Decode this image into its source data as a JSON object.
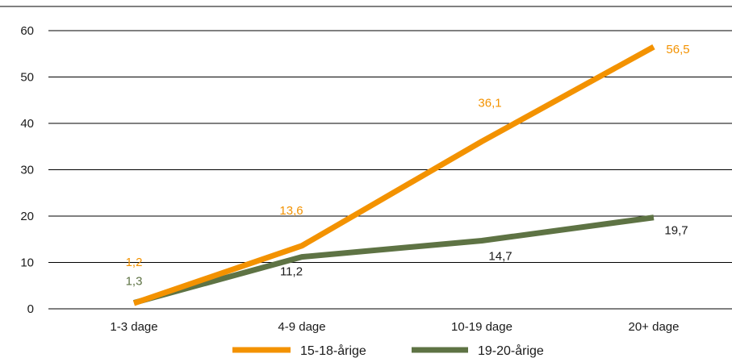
{
  "chart_data": {
    "type": "line",
    "categories": [
      "1-3 dage",
      "4-9 dage",
      "10-19 dage",
      "20+ dage"
    ],
    "series": [
      {
        "name": "15-18-årige",
        "values": [
          1.2,
          13.6,
          36.1,
          56.5
        ],
        "labels": [
          "1,2",
          "13,6",
          "36,1",
          "56,5"
        ],
        "color": "#F39200"
      },
      {
        "name": "19-20-årige",
        "values": [
          1.3,
          11.2,
          14.7,
          19.7
        ],
        "labels": [
          "1,3",
          "11,2",
          "14,7",
          "19,7"
        ],
        "color": "#5E7344"
      }
    ],
    "yticks": [
      "0",
      "10",
      "20",
      "30",
      "40",
      "50",
      "60"
    ],
    "ylim": [
      0,
      60
    ],
    "grid": true,
    "legend": "bottom"
  }
}
